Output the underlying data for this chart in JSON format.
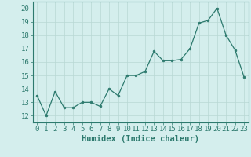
{
  "x": [
    0,
    1,
    2,
    3,
    4,
    5,
    6,
    7,
    8,
    9,
    10,
    11,
    12,
    13,
    14,
    15,
    16,
    17,
    18,
    19,
    20,
    21,
    22,
    23
  ],
  "y": [
    13.5,
    12.0,
    13.8,
    12.6,
    12.6,
    13.0,
    13.0,
    12.7,
    14.0,
    13.5,
    15.0,
    15.0,
    15.3,
    16.8,
    16.1,
    16.1,
    16.2,
    17.0,
    18.9,
    19.1,
    20.0,
    18.0,
    16.9,
    14.9
  ],
  "xlabel": "Humidex (Indice chaleur)",
  "xlim": [
    -0.5,
    23.5
  ],
  "ylim": [
    11.5,
    20.5
  ],
  "yticks": [
    12,
    13,
    14,
    15,
    16,
    17,
    18,
    19,
    20
  ],
  "xticks": [
    0,
    1,
    2,
    3,
    4,
    5,
    6,
    7,
    8,
    9,
    10,
    11,
    12,
    13,
    14,
    15,
    16,
    17,
    18,
    19,
    20,
    21,
    22,
    23
  ],
  "line_color": "#2d7a6e",
  "marker_color": "#2d7a6e",
  "bg_color": "#d4eeed",
  "grid_color": "#b8d8d4",
  "axis_color": "#2d7a6e",
  "tick_color": "#2d7a6e",
  "label_color": "#2d7a6e",
  "xlabel_fontsize": 7.5,
  "tick_fontsize": 6.5
}
